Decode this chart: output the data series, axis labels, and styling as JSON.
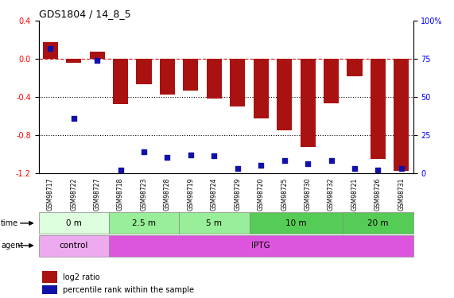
{
  "title": "GDS1804 / 14_8_5",
  "samples": [
    "GSM98717",
    "GSM98722",
    "GSM98727",
    "GSM98718",
    "GSM98723",
    "GSM98728",
    "GSM98719",
    "GSM98724",
    "GSM98729",
    "GSM98720",
    "GSM98725",
    "GSM98730",
    "GSM98732",
    "GSM98721",
    "GSM98726",
    "GSM98731"
  ],
  "log2_ratio": [
    0.18,
    -0.04,
    0.08,
    -0.48,
    -0.27,
    -0.38,
    -0.33,
    -0.42,
    -0.5,
    -0.63,
    -0.75,
    -0.93,
    -0.47,
    -0.18,
    -1.05,
    -1.18
  ],
  "percentile_rank": [
    82,
    36,
    74,
    2,
    14,
    10,
    12,
    11,
    3,
    5,
    8,
    6,
    8,
    3,
    2,
    3
  ],
  "bar_color": "#aa1111",
  "dot_color": "#1111aa",
  "ylim_left": [
    -1.2,
    0.4
  ],
  "ylim_right": [
    0,
    100
  ],
  "yticks_left": [
    -1.2,
    -0.8,
    -0.4,
    0.0,
    0.4
  ],
  "yticks_right": [
    0,
    25,
    50,
    75,
    100
  ],
  "hline_y": 0.0,
  "hline_color": "#cc3333",
  "hline_style": "--",
  "dotted_lines": [
    -0.4,
    -0.8
  ],
  "time_groups": [
    {
      "label": "0 m",
      "start": 0,
      "end": 3,
      "color": "#ddffdd"
    },
    {
      "label": "2.5 m",
      "start": 3,
      "end": 6,
      "color": "#99ee99"
    },
    {
      "label": "5 m",
      "start": 6,
      "end": 9,
      "color": "#99ee99"
    },
    {
      "label": "10 m",
      "start": 9,
      "end": 13,
      "color": "#55cc55"
    },
    {
      "label": "20 m",
      "start": 13,
      "end": 16,
      "color": "#55cc55"
    }
  ],
  "agent_groups": [
    {
      "label": "control",
      "start": 0,
      "end": 3,
      "color": "#eeaaee"
    },
    {
      "label": "IPTG",
      "start": 3,
      "end": 16,
      "color": "#dd55dd"
    }
  ],
  "legend_items": [
    {
      "label": "log2 ratio",
      "color": "#aa1111"
    },
    {
      "label": "percentile rank within the sample",
      "color": "#1111aa"
    }
  ],
  "bar_width": 0.65,
  "background_color": "#ffffff"
}
